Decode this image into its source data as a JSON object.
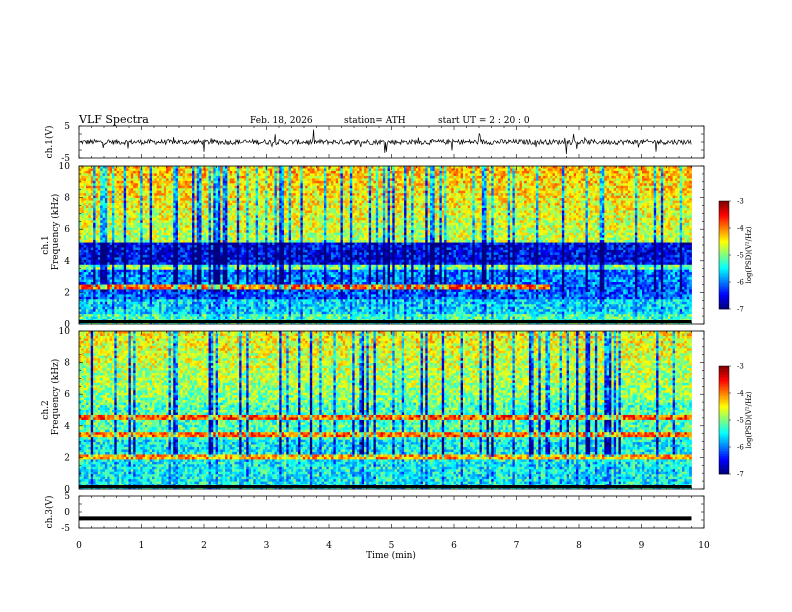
{
  "header": {
    "title": "VLF  Spectra",
    "date": "Feb. 18, 2026",
    "station": "station= ATH",
    "start_ut": "start  UT  =   2  : 20 : 0"
  },
  "chart_data": [
    {
      "type": "line",
      "name": "ch1-waveform",
      "ylabel": "ch.1(V)",
      "ylim": [
        -5,
        5
      ],
      "yticks": [
        "5",
        "-5"
      ],
      "baseline": 0,
      "description_note": "noisy waveform around 0 V with spikes"
    },
    {
      "type": "heatmap",
      "name": "ch1-spectrogram",
      "ylabel_line1": "ch.1",
      "ylabel_line2": "Frequency  (kHz)",
      "ylim": [
        0,
        10
      ],
      "yticks": [
        "0",
        "2",
        "4",
        "6",
        "8",
        "10"
      ],
      "colorbar": {
        "label": "log(PSD)(V²/Hz)",
        "range": [
          -7,
          -3
        ],
        "ticks": [
          "-3",
          "-4",
          "-5",
          "-6",
          "-7"
        ]
      }
    },
    {
      "type": "heatmap",
      "name": "ch2-spectrogram",
      "ylabel_line1": "ch.2",
      "ylabel_line2": "Frequency  (kHz)",
      "ylim": [
        0,
        10
      ],
      "yticks": [
        "0",
        "2",
        "4",
        "6",
        "8",
        "10"
      ],
      "colorbar": {
        "label": "log(PSD)(V²/Hz)",
        "range": [
          -7,
          -3
        ],
        "ticks": [
          "-3",
          "-4",
          "-5",
          "-6",
          "-7"
        ]
      }
    },
    {
      "type": "line",
      "name": "ch3-waveform",
      "ylabel": "ch.3(V)",
      "ylim": [
        -5,
        5
      ],
      "yticks": [
        "5",
        "0",
        "-5"
      ],
      "baseline": -2
    }
  ],
  "xaxis": {
    "label": "Time  (min)",
    "range": [
      0,
      10
    ],
    "data_end": 9.8,
    "ticks": [
      "0",
      "1",
      "2",
      "3",
      "4",
      "5",
      "6",
      "7",
      "8",
      "9",
      "10"
    ]
  },
  "colors": {
    "spectrogram_low": "#00007f",
    "spectrogram_mid": "#00ff80",
    "spectrogram_high": "#ff0000"
  }
}
